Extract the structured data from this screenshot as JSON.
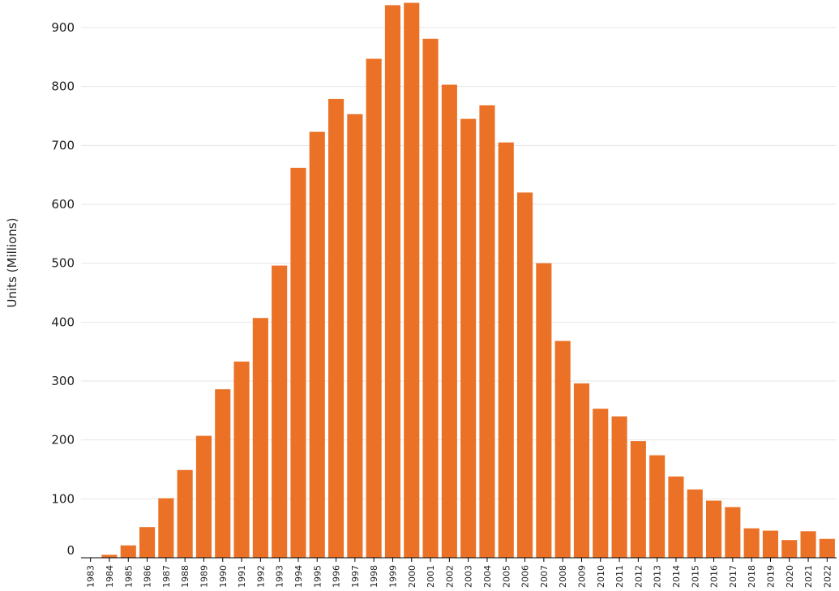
{
  "chart_data": {
    "type": "bar",
    "xlabel": "",
    "ylabel": "Units (Millions)",
    "ylim": [
      0,
      900
    ],
    "yticks": [
      0,
      100,
      200,
      300,
      400,
      500,
      600,
      700,
      800,
      900
    ],
    "grid": true,
    "categories": [
      "1983",
      "1984",
      "1985",
      "1986",
      "1987",
      "1988",
      "1989",
      "1990",
      "1991",
      "1992",
      "1993",
      "1994",
      "1995",
      "1996",
      "1997",
      "1998",
      "1999",
      "2000",
      "2001",
      "2002",
      "2003",
      "2004",
      "2005",
      "2006",
      "2007",
      "2008",
      "2009",
      "2010",
      "2011",
      "2012",
      "2013",
      "2014",
      "2015",
      "2016",
      "2017",
      "2018",
      "2019",
      "2020",
      "2021",
      "2022"
    ],
    "values": [
      0,
      5,
      21,
      52,
      101,
      149,
      207,
      286,
      333,
      407,
      496,
      662,
      723,
      779,
      753,
      847,
      938,
      942,
      881,
      803,
      745,
      768,
      705,
      620,
      500,
      368,
      296,
      253,
      240,
      198,
      174,
      138,
      116,
      97,
      86,
      50,
      46,
      30,
      45,
      32
    ],
    "bar_color": "#ea7125"
  }
}
